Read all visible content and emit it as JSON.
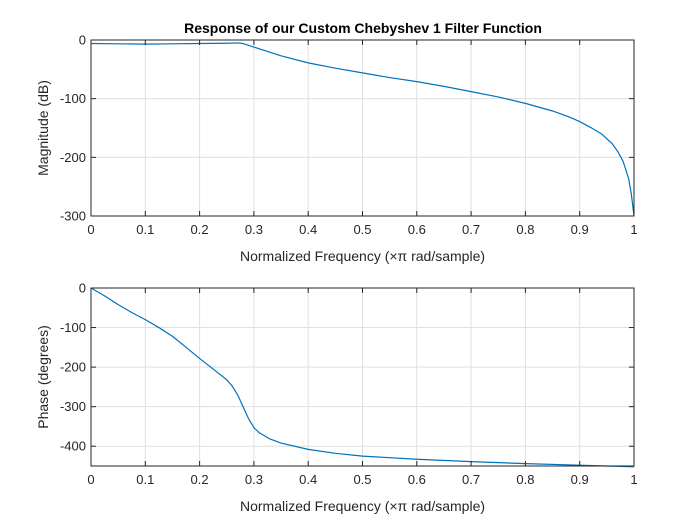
{
  "figure": {
    "title": "Response of our Custom Chebyshev 1 Filter Function"
  },
  "chart_data": [
    {
      "type": "line",
      "title": "Response of our Custom Chebyshev 1 Filter Function",
      "xlabel": "Normalized Frequency  (×π rad/sample)",
      "ylabel": "Magnitude (dB)",
      "xlim": [
        0,
        1
      ],
      "ylim": [
        -300,
        0
      ],
      "xticks": [
        0,
        0.1,
        0.2,
        0.3,
        0.4,
        0.5,
        0.6,
        0.7,
        0.8,
        0.9,
        1
      ],
      "yticks": [
        0,
        -100,
        -200,
        -300
      ],
      "xtick_labels": [
        "0",
        "0.1",
        "0.2",
        "0.3",
        "0.4",
        "0.5",
        "0.6",
        "0.7",
        "0.8",
        "0.9",
        "1"
      ],
      "ytick_labels": [
        "0",
        "-100",
        "-200",
        "-300"
      ],
      "grid": true,
      "line_color": "#0072BD",
      "series": [
        {
          "x": [
            0,
            0.05,
            0.1,
            0.15,
            0.2,
            0.25,
            0.27,
            0.28,
            0.29,
            0.3,
            0.32,
            0.35,
            0.4,
            0.45,
            0.5,
            0.55,
            0.6,
            0.65,
            0.7,
            0.75,
            0.8,
            0.85,
            0.88,
            0.9,
            0.92,
            0.94,
            0.96,
            0.97,
            0.98,
            0.99,
            0.995,
            1
          ],
          "y": [
            -6,
            -6.5,
            -7,
            -6.5,
            -6,
            -5.5,
            -5,
            -6,
            -9,
            -12,
            -18,
            -27,
            -39,
            -48,
            -56,
            -64,
            -71,
            -79,
            -88,
            -97,
            -108,
            -121,
            -131,
            -139,
            -149,
            -160,
            -177,
            -190,
            -207,
            -236,
            -262,
            -300
          ]
        }
      ]
    },
    {
      "type": "line",
      "title": "",
      "xlabel": "Normalized Frequency  (×π rad/sample)",
      "ylabel": "Phase (degrees)",
      "xlim": [
        0,
        1
      ],
      "ylim": [
        -450,
        0
      ],
      "xticks": [
        0,
        0.1,
        0.2,
        0.3,
        0.4,
        0.5,
        0.6,
        0.7,
        0.8,
        0.9,
        1
      ],
      "yticks": [
        0,
        -100,
        -200,
        -300,
        -400
      ],
      "xtick_labels": [
        "0",
        "0.1",
        "0.2",
        "0.3",
        "0.4",
        "0.5",
        "0.6",
        "0.7",
        "0.8",
        "0.9",
        "1"
      ],
      "ytick_labels": [
        "0",
        "-100",
        "-200",
        "-300",
        "-400"
      ],
      "grid": true,
      "line_color": "#0072BD",
      "series": [
        {
          "x": [
            0,
            0.025,
            0.05,
            0.075,
            0.1,
            0.125,
            0.15,
            0.175,
            0.2,
            0.225,
            0.25,
            0.26,
            0.27,
            0.28,
            0.29,
            0.3,
            0.31,
            0.33,
            0.35,
            0.4,
            0.45,
            0.5,
            0.6,
            0.7,
            0.8,
            0.9,
            0.95,
            1
          ],
          "y": [
            0,
            -20,
            -42,
            -62,
            -80,
            -100,
            -122,
            -150,
            -178,
            -205,
            -232,
            -248,
            -270,
            -300,
            -330,
            -353,
            -366,
            -382,
            -392,
            -408,
            -418,
            -425,
            -433,
            -439,
            -444,
            -448,
            -450,
            -452
          ]
        }
      ]
    }
  ]
}
